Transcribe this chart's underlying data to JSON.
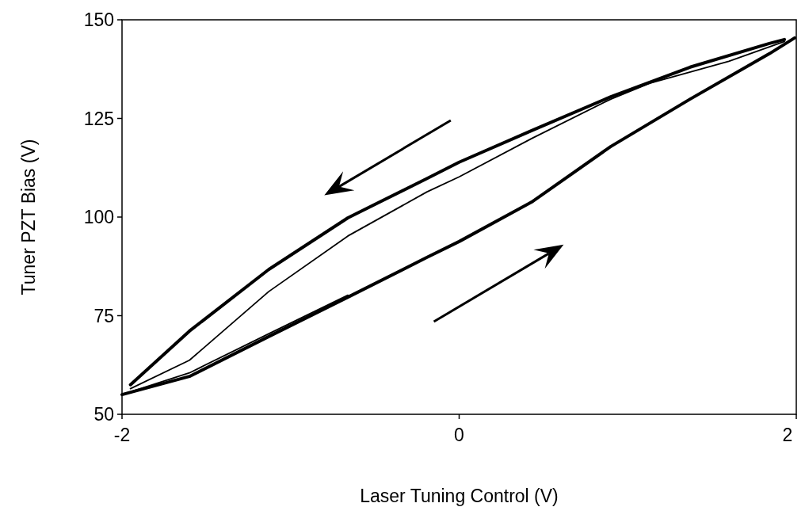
{
  "chart_data": {
    "type": "line",
    "xlabel": "Laser Tuning Control (V)",
    "ylabel": "Tuner PZT Bias (V)",
    "xlim": [
      -2,
      2
    ],
    "xticks": [
      -2,
      0,
      2
    ],
    "ylim": [
      50,
      150
    ],
    "yticks": [
      50,
      75,
      100,
      125,
      150
    ],
    "marker": "none",
    "line_style": "solid",
    "series": [
      {
        "color": "#000000",
        "x": [
          -2,
          -1.6,
          -1.13,
          -0.66,
          -0.19,
          0,
          0.43,
          0.9,
          1.37,
          1.84,
          1.99
        ],
        "values": [
          55,
          59.6,
          69.7,
          79.7,
          89.8,
          93.8,
          103.8,
          117.9,
          129.9,
          141.4,
          145.4
        ]
      },
      {
        "color": "#000000",
        "x": [
          -1.95,
          -1.6,
          -1.13,
          -0.66,
          -0.19,
          0,
          0.43,
          0.9,
          1.37,
          1.84,
          1.93
        ],
        "values": [
          57.5,
          71.1,
          86.7,
          99.8,
          109.8,
          113.9,
          121.9,
          130.5,
          138,
          144,
          145
        ]
      },
      {
        "color": "#000000",
        "x": [
          -2,
          -1.6,
          -1.13,
          -0.66
        ],
        "values": [
          55,
          60.5,
          70.4,
          80.2
        ]
      },
      {
        "color": "#000000",
        "x": [
          -1.95,
          -1.6,
          -1.13,
          -0.66,
          -0.19,
          0,
          0.43,
          0.9,
          1.13,
          1.6,
          1.93
        ],
        "values": [
          56.5,
          63.7,
          81.1,
          95.2,
          106.4,
          110.2,
          119.9,
          129.9,
          133.9,
          139.5,
          144.5
        ]
      }
    ]
  }
}
